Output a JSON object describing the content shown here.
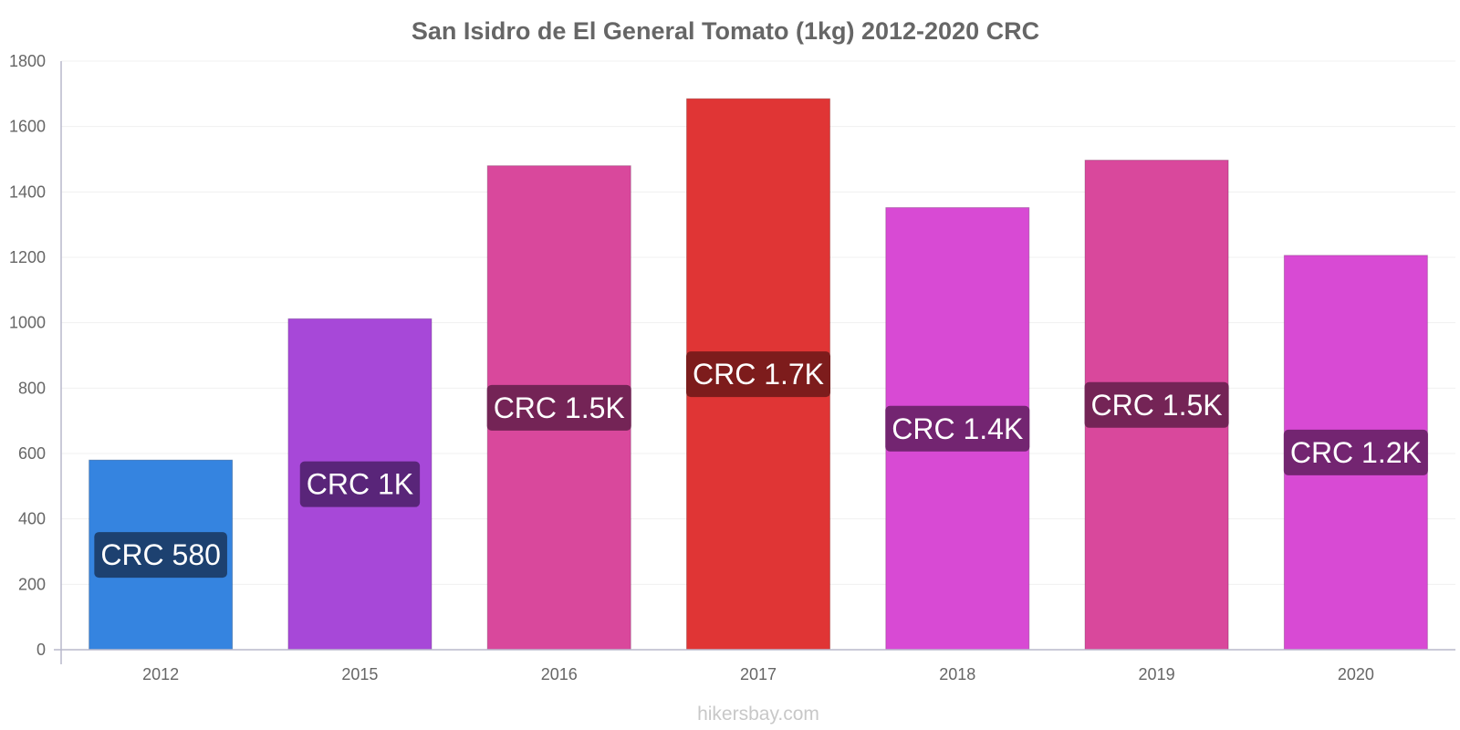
{
  "chart_data": {
    "type": "bar",
    "title": "San Isidro de El General Tomato (1kg) 2012-2020 CRC",
    "categories": [
      "2012",
      "2015",
      "2016",
      "2017",
      "2018",
      "2019",
      "2020"
    ],
    "values": [
      580,
      1012,
      1480,
      1685,
      1352,
      1497,
      1206
    ],
    "data_labels": [
      "CRC 580",
      "CRC 1K",
      "CRC 1.5K",
      "CRC 1.7K",
      "CRC 1.4K",
      "CRC 1.5K",
      "CRC 1.2K"
    ],
    "bar_colors": [
      "#3584e0",
      "#a748d8",
      "#d9489c",
      "#e03535",
      "#d84ad4",
      "#d9489c",
      "#d84ad4"
    ],
    "label_bg_colors": [
      "#1b3c66",
      "#522371",
      "#6b2250",
      "#741a1a",
      "#6a2268",
      "#6b2250",
      "#6a2268"
    ],
    "ylim": [
      0,
      1800
    ],
    "yticks": [
      0,
      200,
      400,
      600,
      800,
      1000,
      1200,
      1400,
      1600,
      1800
    ],
    "xlabel": "",
    "ylabel": "",
    "grid": true,
    "legend": "none"
  },
  "watermark": "hikersbay.com"
}
